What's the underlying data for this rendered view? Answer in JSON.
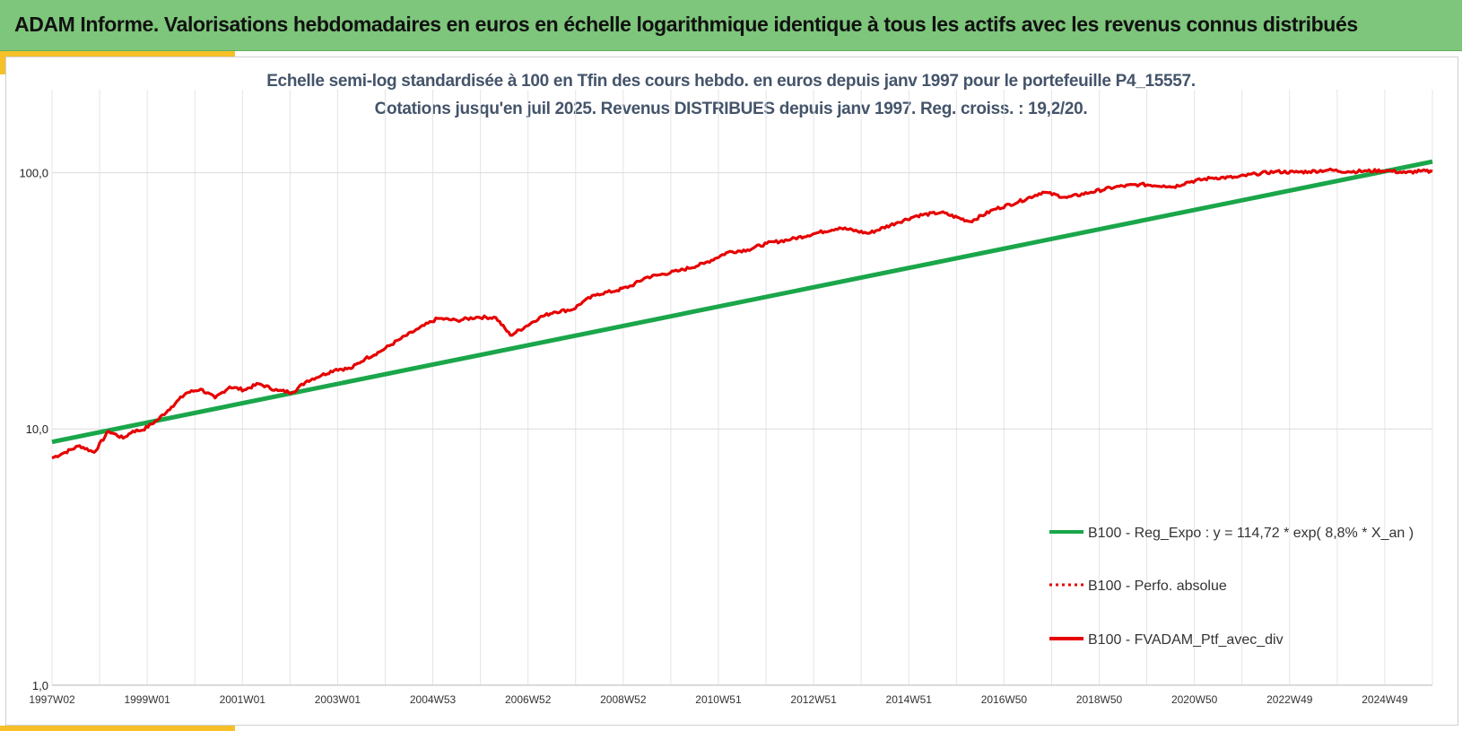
{
  "header": {
    "title": "ADAM Informe. Valorisations hebdomadaires en euros en échelle logarithmique identique à tous les actifs avec les revenus connus distribués"
  },
  "colors": {
    "banner": "#7dc67b",
    "accent": "#f5c028",
    "regression": "#1aa64a",
    "portfolio": "#e60000",
    "title_text": "#44546a"
  },
  "chart_data": {
    "type": "line",
    "title": "Echelle semi-log standardisée  à 100 en Tfin des cours hebdo.  en euros depuis janv 1997 pour le portefeuille P4_15557.",
    "subtitle": "Cotations jusqu'en juil 2025. Revenus DISTRIBUES depuis janv 1997. Reg. croiss. : 19,2/20.",
    "xlabel": "",
    "ylabel": "",
    "yscale": "log",
    "ylim": [
      1,
      200
    ],
    "xlim": [
      1997.03,
      2025.55
    ],
    "grid": true,
    "legend_position": "bottom-right",
    "x_ticks": [
      "1997W02",
      "1999W01",
      "2001W01",
      "2003W01",
      "2004W53",
      "2006W52",
      "2008W52",
      "2010W51",
      "2012W51",
      "2014W51",
      "2016W50",
      "2018W50",
      "2020W50",
      "2022W49",
      "2024W49"
    ],
    "y_ticks": [
      "1,0",
      "10,0",
      "100,0"
    ],
    "series": [
      {
        "name": "B100 - Reg_Expo : y = 114,72 * exp( 8,8% *  X_an )",
        "style": "solid",
        "color": "#1aa64a",
        "x": [
          1997.03,
          2025.55
        ],
        "values": [
          8.9,
          110.5
        ]
      },
      {
        "name": "B100 - Perfo. absolue",
        "style": "dotted",
        "color": "#e60000",
        "x": [],
        "values": []
      },
      {
        "name": "B100 - FVADAM_Ptf_avec_div",
        "style": "solid",
        "color": "#e60000",
        "x": [
          1997.03,
          1997.3,
          1997.6,
          1997.9,
          1998.2,
          1998.5,
          1998.7,
          1998.9,
          1999.2,
          1999.5,
          1999.8,
          2000.1,
          2000.4,
          2000.7,
          2001.0,
          2001.3,
          2001.7,
          2002.0,
          2002.3,
          2002.6,
          2002.9,
          2003.2,
          2003.5,
          2003.8,
          2004.2,
          2004.6,
          2005.0,
          2005.4,
          2005.8,
          2006.2,
          2006.5,
          2006.8,
          2007.1,
          2007.4,
          2007.8,
          2008.0,
          2008.3,
          2008.7,
          2009.0,
          2009.3,
          2009.6,
          2010.0,
          2010.5,
          2011.0,
          2011.4,
          2011.8,
          2012.3,
          2012.8,
          2013.3,
          2013.9,
          2014.5,
          2014.9,
          2015.4,
          2016.0,
          2016.5,
          2017.0,
          2017.5,
          2018.0,
          2018.5,
          2019.0,
          2019.5,
          2020.0,
          2020.2,
          2020.5,
          2021.0,
          2021.5,
          2021.9,
          2022.3,
          2022.7,
          2023.0,
          2023.4,
          2023.8,
          2024.2,
          2024.6,
          2025.0,
          2025.3,
          2025.55
        ],
        "values": [
          7.7,
          8.1,
          8.6,
          8.1,
          9.8,
          9.2,
          9.8,
          9.9,
          10.8,
          12.2,
          13.8,
          14.3,
          13.2,
          14.6,
          14.2,
          15.0,
          14.1,
          13.9,
          15.4,
          16.2,
          17.1,
          17.2,
          18.8,
          20.0,
          22.3,
          24.6,
          27.0,
          26.5,
          27.3,
          27.2,
          23.2,
          25.0,
          27.2,
          28.6,
          29.3,
          31.4,
          33.6,
          34.7,
          36.2,
          39.0,
          40.0,
          41.5,
          44.2,
          49.0,
          50.0,
          53.0,
          55.0,
          58.0,
          61.0,
          58.0,
          64.0,
          68.0,
          70.0,
          64.5,
          72.0,
          77.0,
          84.0,
          80.0,
          84.0,
          88.0,
          90.0,
          89.0,
          88.0,
          92.0,
          95.5,
          96.0,
          99.0,
          101.0,
          100.5,
          101.0,
          102.5,
          101.0,
          101.5,
          102.0,
          100.0,
          101.5,
          101.0
        ]
      }
    ]
  }
}
